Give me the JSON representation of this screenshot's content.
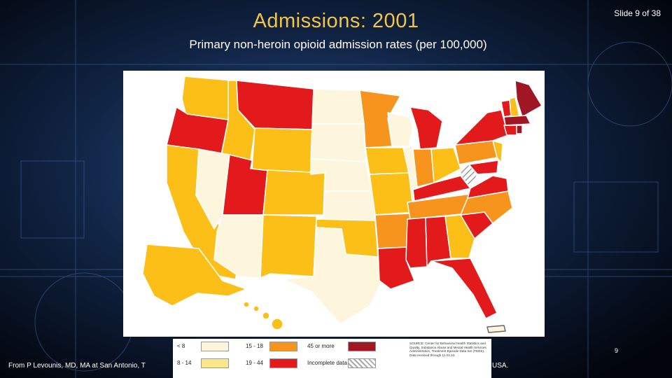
{
  "slide": {
    "title": "Admissions: 2001",
    "subtitle": "Primary non-heroin opioid admission rates (per 100,000)",
    "slide_counter": "Slide 9 of 38",
    "page_number": "9",
    "footer_text": "From P Levounis, MD, MA at San Antonio, T",
    "footer_end": "USA."
  },
  "colors": {
    "bg": "#03070f",
    "title": "#f5c542",
    "lt8": "#fdf6dc",
    "r8_14": "#fde58a",
    "r15_18": "#fbbf17",
    "r19_44": "#e31a1c",
    "r45_plus": "#a01622",
    "incomplete": "hatch",
    "orange_mid": "#f7941d"
  },
  "legend": {
    "items": [
      {
        "label": "< 8",
        "color": "#fdf6dc"
      },
      {
        "label": "8 - 14",
        "color": "#fde58a"
      },
      {
        "label": "15 - 18",
        "color": "#f7941d"
      },
      {
        "label": "19 - 44",
        "color": "#e31a1c"
      },
      {
        "label": "45 or more",
        "color": "#a01622"
      },
      {
        "label": "Incomplete data",
        "color": "hatch"
      }
    ],
    "source": "SOURCE: Center for Behavioral Health Statistics and Quality, Substance Abuse and Mental Health Services Administration, Treatment Episode Data Set (TEDS). Data received through 11.03.10."
  }
}
